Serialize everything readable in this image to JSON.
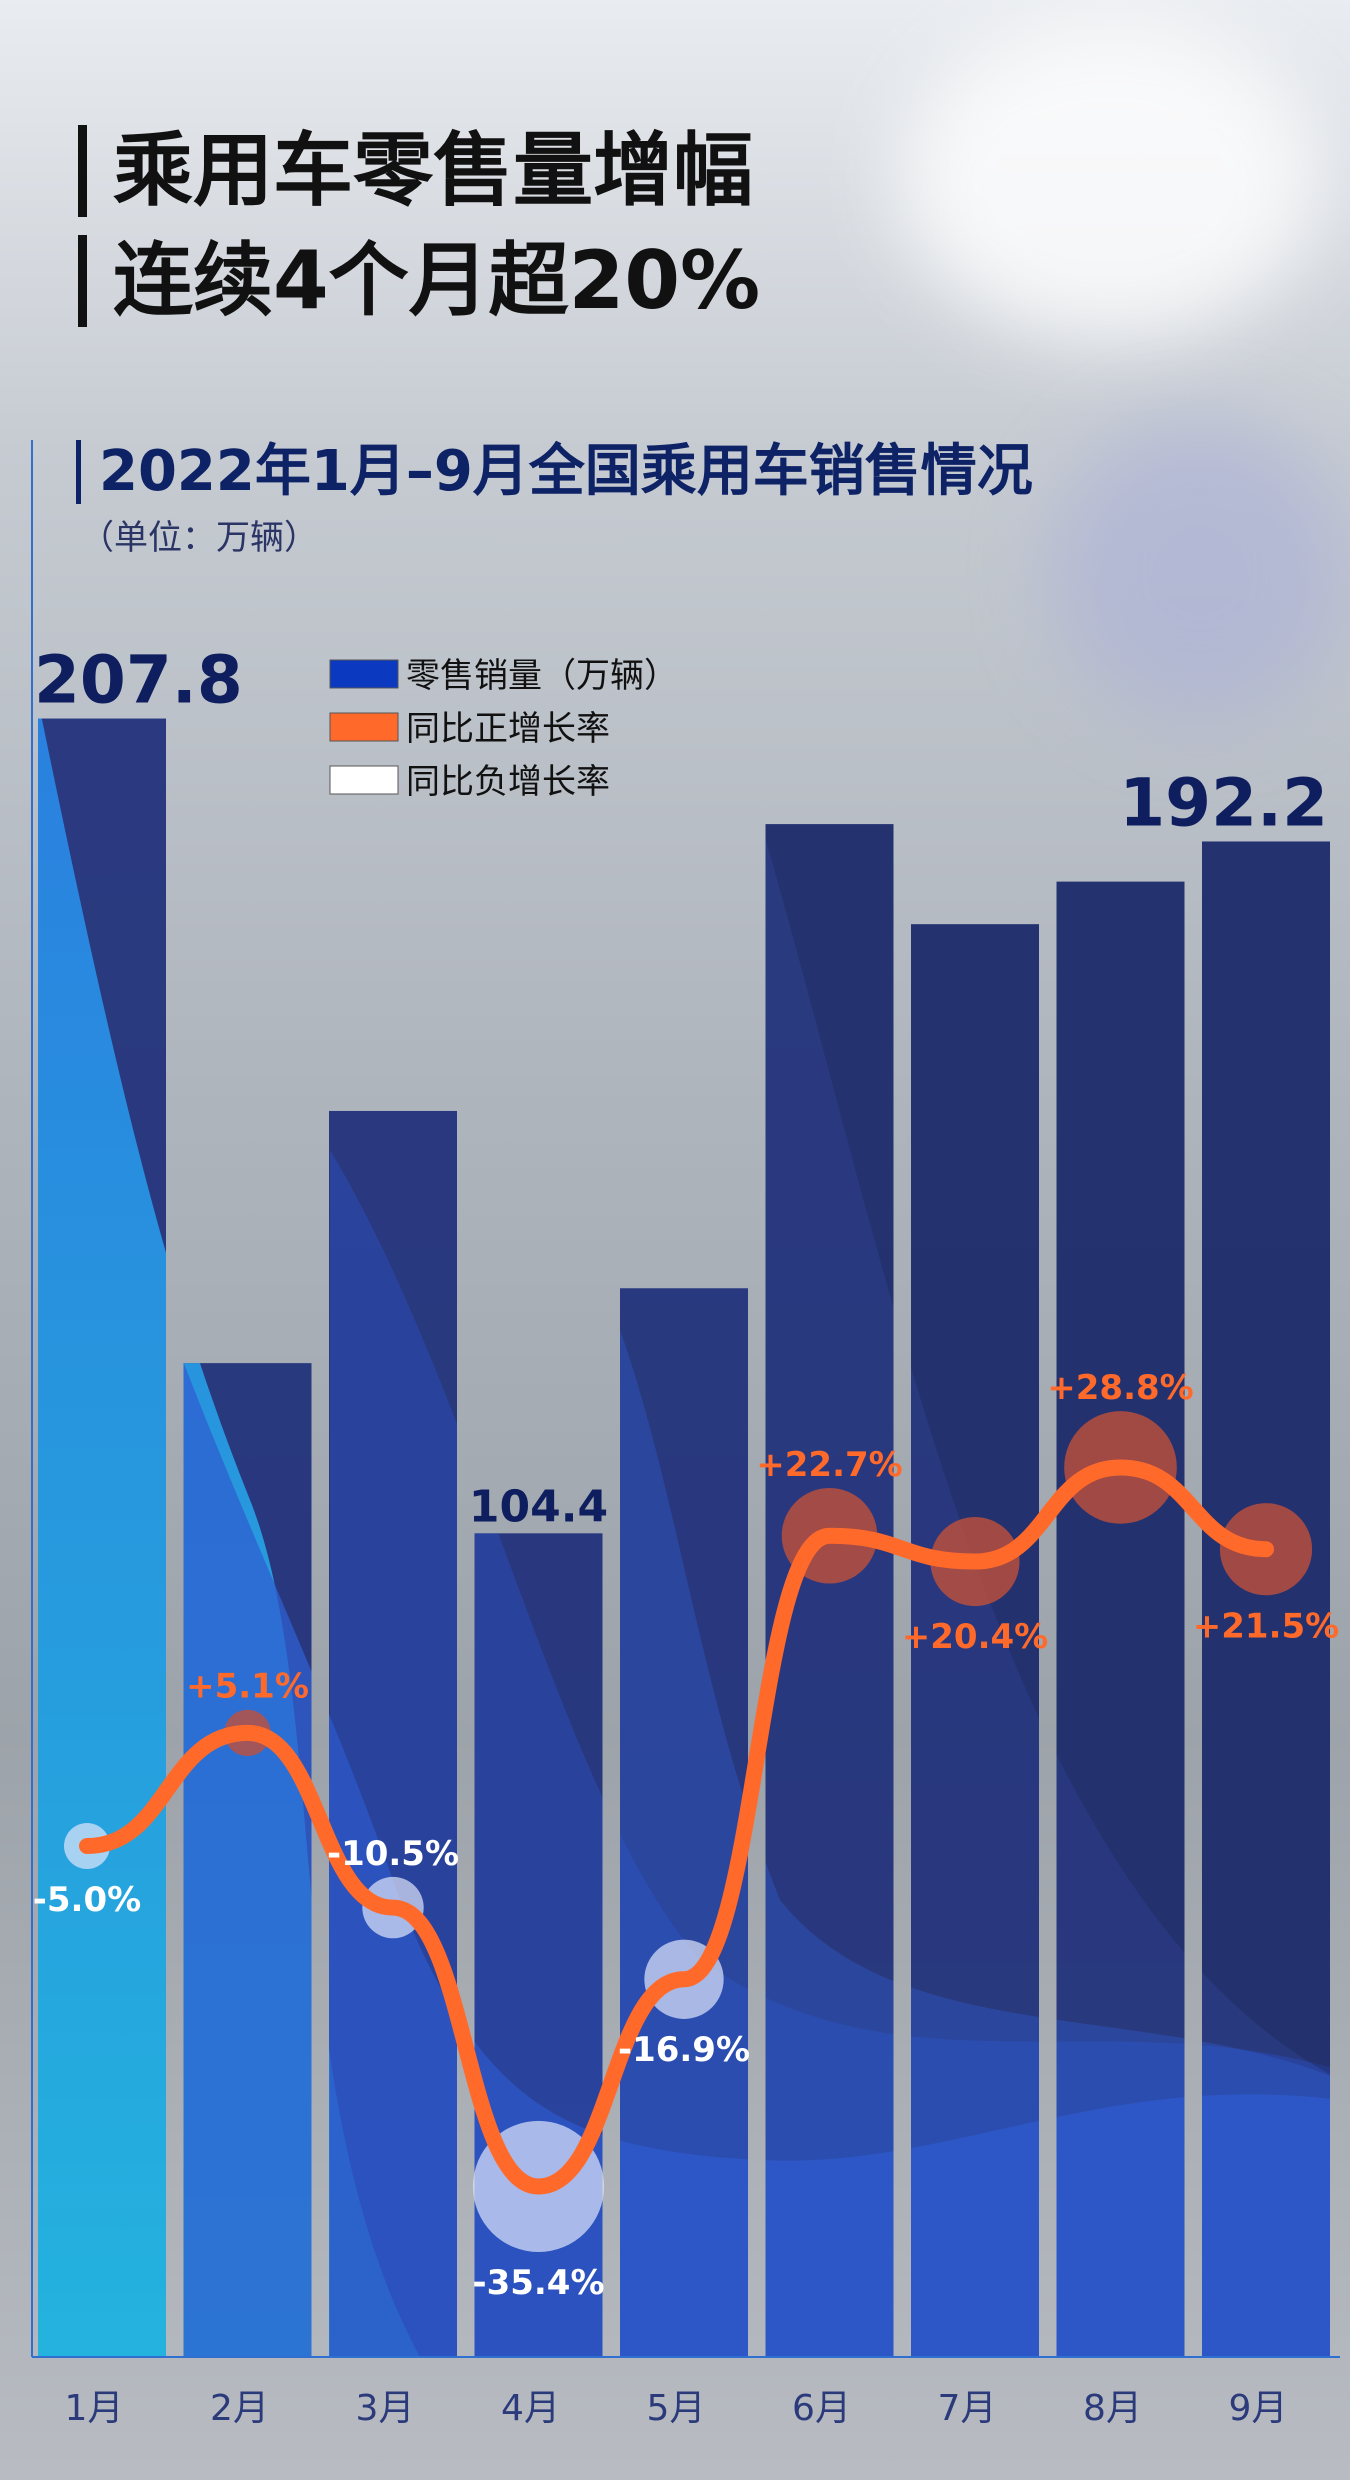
{
  "title_lines": [
    "乘用车零售量增幅",
    "连续4个月超20%"
  ],
  "subtitle": "2022年1月–9月全国乘用车销售情况",
  "unit": "（单位：万辆）",
  "legend": [
    {
      "label": "零售销量（万辆）",
      "color": "#0b3ac0"
    },
    {
      "label": "同比正增长率",
      "color": "#ff6a2a"
    },
    {
      "label": "同比负增长率",
      "color": "#ffffff"
    }
  ],
  "chart_data": {
    "type": "bar+line",
    "categories": [
      "1月",
      "2月",
      "3月",
      "4月",
      "5月",
      "6月",
      "7月",
      "8月",
      "9月"
    ],
    "series": [
      {
        "name": "零售销量（万辆）",
        "type": "bar",
        "values": [
          207.8,
          126,
          158,
          104.4,
          135.5,
          194.4,
          181.7,
          187.1,
          192.2
        ]
      },
      {
        "name": "同比增长率",
        "type": "line",
        "values": [
          -5.0,
          5.1,
          -10.5,
          -35.4,
          -16.9,
          22.7,
          20.4,
          28.8,
          21.5
        ]
      }
    ],
    "bar_value_labels": {
      "0": "207.8",
      "3": "104.4",
      "8": "192.2"
    },
    "line_value_labels": [
      "-5.0%",
      "+5.1%",
      "-10.5%",
      "-35.4%",
      "-16.9%",
      "+22.7%",
      "+20.4%",
      "+28.8%",
      "+21.5%"
    ],
    "colors": {
      "bar": "#1e2f7a",
      "positive": "#ff6a2a",
      "negative": "#ffffff",
      "bar_label": "#0e1e5e"
    }
  }
}
